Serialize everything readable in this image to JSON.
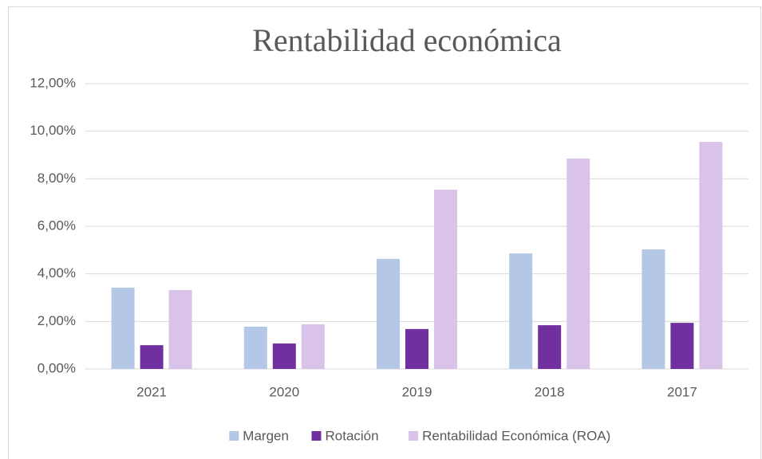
{
  "chart_data": {
    "type": "bar",
    "title": "Rentabilidad económica",
    "categories": [
      "2021",
      "2020",
      "2019",
      "2018",
      "2017"
    ],
    "series": [
      {
        "name": "Margen",
        "color": "#b4c7e7",
        "values": [
          3.42,
          1.78,
          4.63,
          4.86,
          5.03
        ]
      },
      {
        "name": "Rotación",
        "color": "#7030a0",
        "values": [
          1.0,
          1.07,
          1.68,
          1.84,
          1.94
        ]
      },
      {
        "name": "Rentabilidad Económica (ROA)",
        "color": "#d9c3e9",
        "values": [
          3.32,
          1.88,
          7.54,
          8.85,
          9.55
        ]
      }
    ],
    "ylim": [
      0,
      12
    ],
    "yticks": [
      {
        "value": 0,
        "label": "0,00%"
      },
      {
        "value": 2,
        "label": "2,00%"
      },
      {
        "value": 4,
        "label": "4,00%"
      },
      {
        "value": 6,
        "label": "6,00%"
      },
      {
        "value": 8,
        "label": "8,00%"
      },
      {
        "value": 10,
        "label": "10,00%"
      },
      {
        "value": 12,
        "label": "12,00%"
      }
    ],
    "grid": true,
    "legend": "bottom"
  }
}
